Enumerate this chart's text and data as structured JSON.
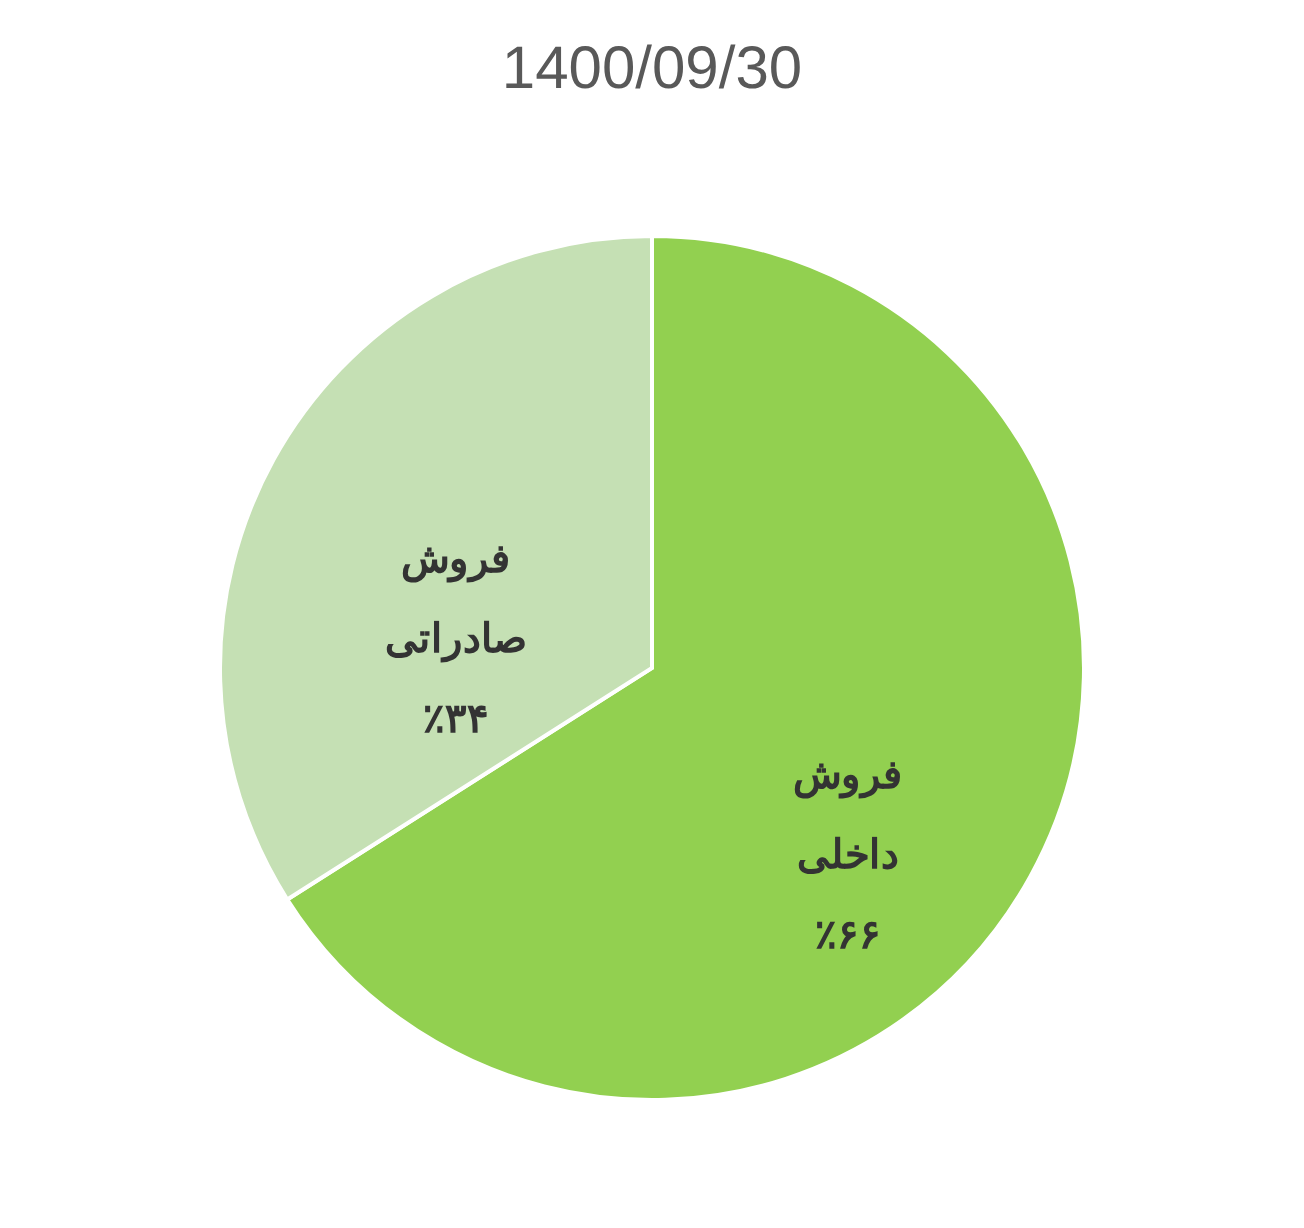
{
  "chart_data": {
    "type": "pie",
    "title": "1400/09/30",
    "categories": [
      "فروش داخلی",
      "فروش صادراتی"
    ],
    "values": [
      66,
      34
    ],
    "colors": [
      "#92d050",
      "#c5e0b4"
    ],
    "value_labels": [
      "٪۶۶",
      "٪۳۴"
    ],
    "legend": false
  }
}
